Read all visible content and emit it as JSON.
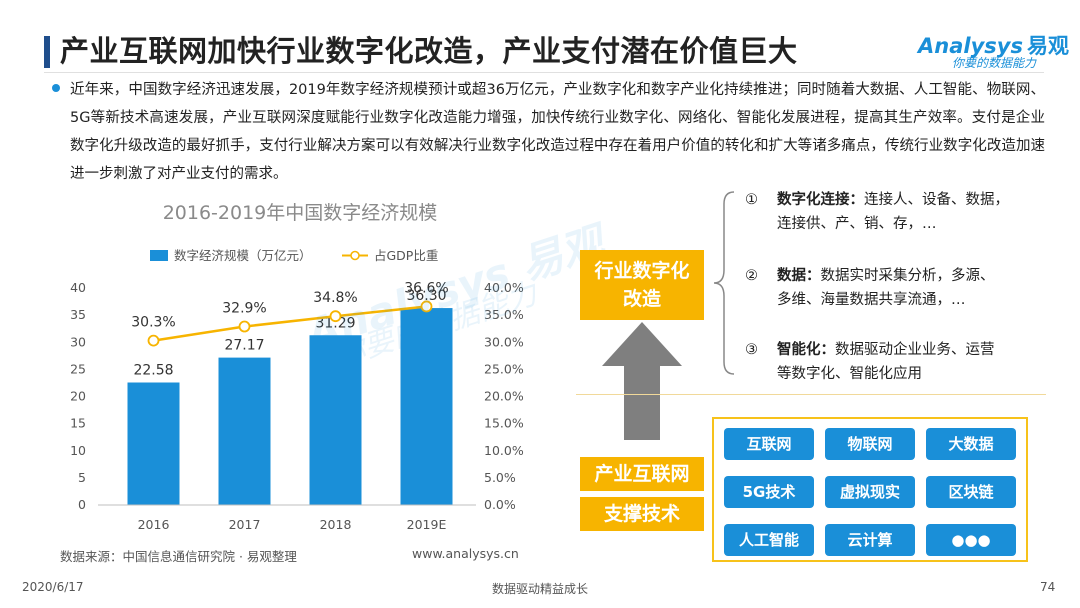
{
  "header": {
    "title": "产业互联网加快行业数字化改造，产业支付潜在价值巨大",
    "logo_en": "Analysys",
    "logo_cn": "易观",
    "logo_tagline": "你要的数据能力"
  },
  "intro_text": "近年来，中国数字经济迅速发展，2019年数字经济规模预计或超36万亿元，产业数字化和数字产业化持续推进；同时随着大数据、人工智能、物联网、5G等新技术高速发展，产业互联网深度赋能行业数字化改造能力增强，加快传统行业数字化、网络化、智能化发展进程，提高其生产效率。支付是企业数字化升级改造的最好抓手，支付行业解决方案可以有效解决行业数字化改造过程中存在着用户价值的转化和扩大等诸多痛点，传统行业数字化改造加速进一步刺激了对产业支付的需求。",
  "chart_data": {
    "type": "bar",
    "title": "2016-2019年中国数字经济规模",
    "categories": [
      "2016",
      "2017",
      "2018",
      "2019E"
    ],
    "series": [
      {
        "name": "数字经济规模（万亿元）",
        "type": "bar",
        "axis": "left",
        "values": [
          22.58,
          27.17,
          31.29,
          36.3
        ],
        "labels": [
          "22.58",
          "27.17",
          "31.29",
          "36.30"
        ],
        "color": "#1a8fd8"
      },
      {
        "name": "占GDP比重",
        "type": "line",
        "axis": "right",
        "values": [
          30.3,
          32.9,
          34.8,
          36.6
        ],
        "labels": [
          "30.3%",
          "32.9%",
          "34.8%",
          "36.6%"
        ],
        "color": "#f7b400"
      }
    ],
    "y_left": {
      "min": 0,
      "max": 40,
      "step": 5,
      "ticks": [
        "0",
        "5",
        "10",
        "15",
        "20",
        "25",
        "30",
        "35",
        "40"
      ]
    },
    "y_right": {
      "min": 0,
      "max": 40,
      "step": 5,
      "ticks": [
        "0.0%",
        "5.0%",
        "10.0%",
        "15.0%",
        "20.0%",
        "25.0%",
        "30.0%",
        "35.0%",
        "40.0%"
      ]
    },
    "grid": false,
    "legend": "top"
  },
  "source": {
    "text": "数据来源：中国信息通信研究院 · 易观整理",
    "url": "www.analysys.cn"
  },
  "watermark": {
    "main": "Analysys 易观",
    "sub": "你要的数据能力"
  },
  "diagram": {
    "industry_box": [
      "行业数字化",
      "改造"
    ],
    "internet_box": "产业互联网",
    "support_box": "支撑技术",
    "points": [
      {
        "num": "①",
        "head": "数字化连接：",
        "body": "连接人、设备、数据，",
        "cont": "连接供、产、销、存，…"
      },
      {
        "num": "②",
        "head": "数据：",
        "body": "数据实时采集分析，多源、",
        "cont": "多维、海量数据共享流通，…"
      },
      {
        "num": "③",
        "head": "智能化：",
        "body": "数据驱动企业业务、运营",
        "cont": "等数字化、智能化应用"
      }
    ],
    "tech_items": [
      "互联网",
      "物联网",
      "大数据",
      "5G技术",
      "虚拟现实",
      "区块链",
      "人工智能",
      "云计算",
      "●●●"
    ],
    "colors": {
      "gold": "#f7b400",
      "blue": "#1a8fd8",
      "arrow": "#7f7f7f"
    }
  },
  "footer": {
    "date": "2020/6/17",
    "slogan": "数据驱动精益成长",
    "page": "74"
  }
}
